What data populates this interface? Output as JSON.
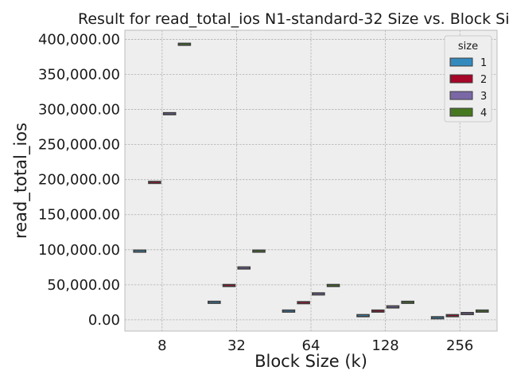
{
  "chart_data": {
    "type": "box",
    "title": "Result for read_total_ios N1-standard-32 Size vs. Block Size",
    "xlabel": "Block Size (k)",
    "ylabel": "read_total_ios",
    "categories": [
      "8",
      "32",
      "64",
      "128",
      "256"
    ],
    "ylim": [
      -16000,
      413000
    ],
    "yticks": [
      0,
      50000,
      100000,
      150000,
      200000,
      250000,
      300000,
      350000,
      400000
    ],
    "ytick_labels": [
      "0.00",
      "50,000.00",
      "100,000.00",
      "150,000.00",
      "200,000.00",
      "250,000.00",
      "300,000.00",
      "350,000.00",
      "400,000.00"
    ],
    "grid": true,
    "legend": {
      "title": "size",
      "position": "top-right"
    },
    "series": [
      {
        "name": "1",
        "color": "#348ABD",
        "values": [
          98000,
          25000,
          12500,
          6000,
          3000
        ]
      },
      {
        "name": "2",
        "color": "#A60628",
        "values": [
          196000,
          49000,
          24500,
          12500,
          6000
        ]
      },
      {
        "name": "3",
        "color": "#7A68A6",
        "values": [
          294000,
          74000,
          37000,
          18500,
          9000
        ]
      },
      {
        "name": "4",
        "color": "#467821",
        "values": [
          393000,
          98000,
          49000,
          25000,
          12500
        ]
      }
    ]
  }
}
